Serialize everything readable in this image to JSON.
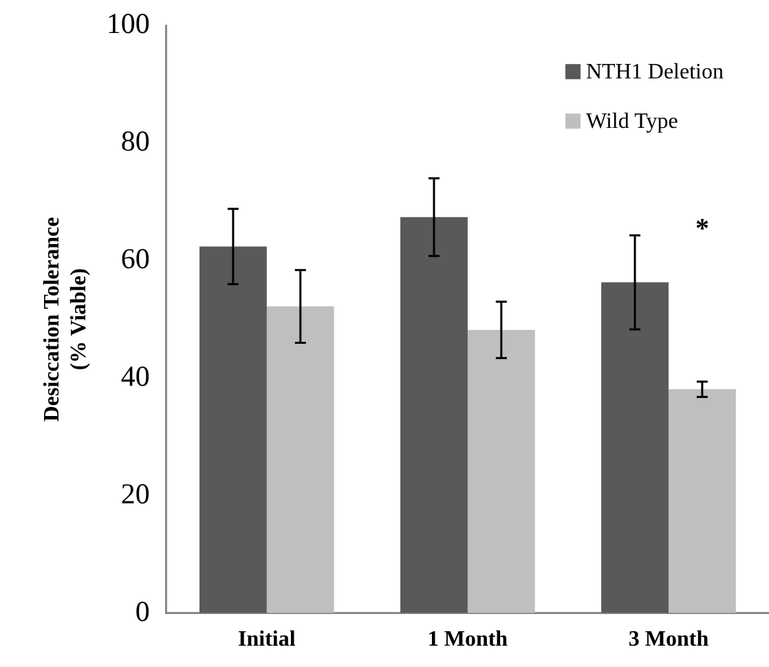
{
  "chart_data": {
    "type": "bar",
    "ylabel": "Desiccation Tolerance (% Viable)",
    "categories": [
      "Initial",
      "1 Month",
      "3 Month"
    ],
    "series": [
      {
        "name": "NTH1 Deletion",
        "color": "#595959",
        "values": [
          62.4,
          67.4,
          56.3
        ],
        "errors": [
          6.4,
          6.6,
          8
        ]
      },
      {
        "name": "Wild Type",
        "color": "#bfbfbf",
        "values": [
          52.2,
          48.2,
          38.1
        ],
        "errors": [
          6.2,
          4.8,
          1.3
        ]
      }
    ],
    "ylim": [
      0,
      100
    ],
    "yticks": [
      0,
      20,
      40,
      60,
      80,
      100
    ],
    "grid": false,
    "legend": "top right",
    "annotations": [
      "*"
    ]
  }
}
